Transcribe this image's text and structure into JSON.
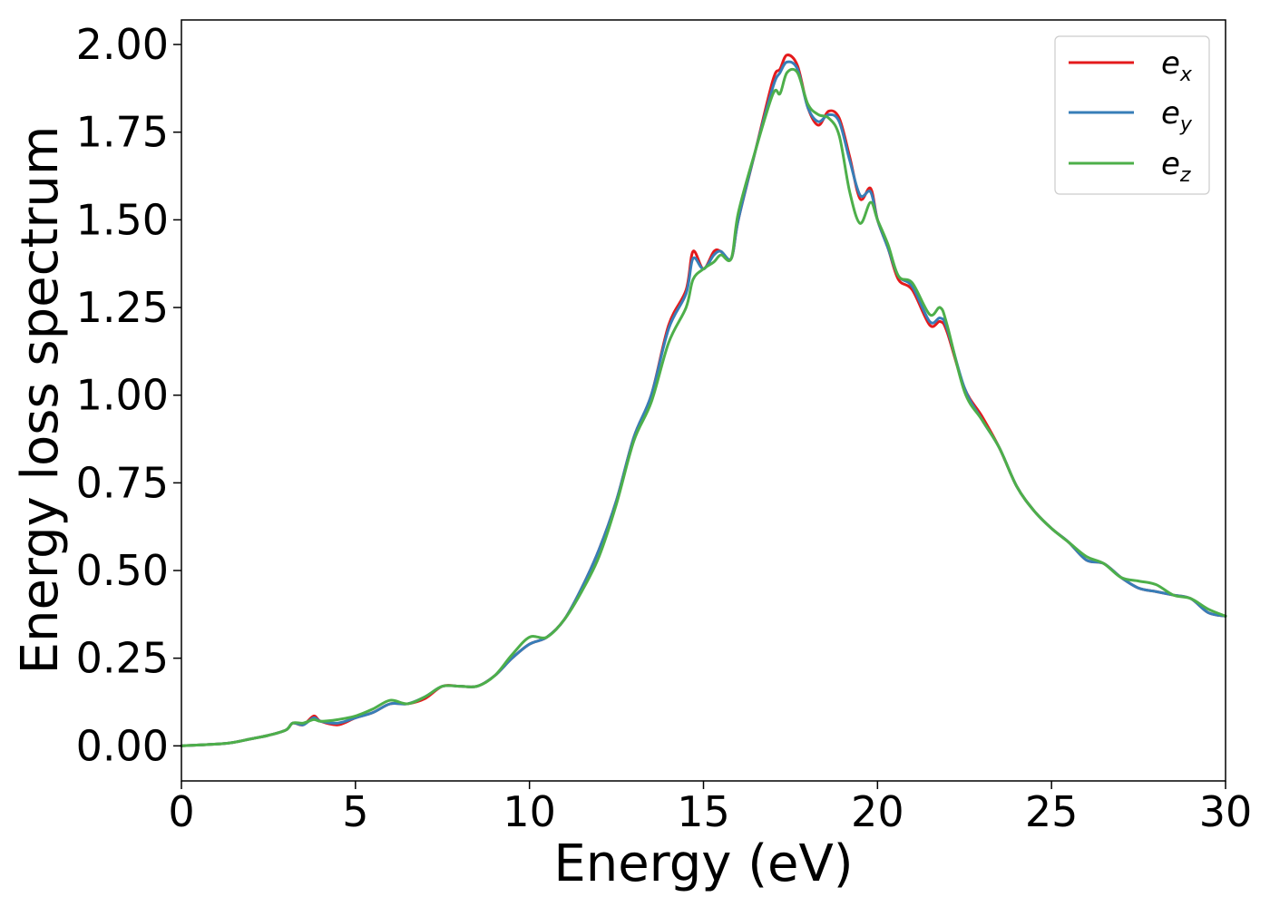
{
  "chart_data": {
    "type": "line",
    "title": "",
    "xlabel": "Energy (eV)",
    "ylabel": "Energy loss spectrum",
    "xlim": [
      0,
      30
    ],
    "ylim": [
      -0.1,
      2.07
    ],
    "xticks": [
      0,
      5,
      10,
      15,
      20,
      25,
      30
    ],
    "xtick_labels": [
      "0",
      "5",
      "10",
      "15",
      "20",
      "25",
      "30"
    ],
    "yticks": [
      0.0,
      0.25,
      0.5,
      0.75,
      1.0,
      1.25,
      1.5,
      1.75,
      2.0
    ],
    "ytick_labels": [
      "0.00",
      "0.25",
      "0.50",
      "0.75",
      "1.00",
      "1.25",
      "1.50",
      "1.75",
      "2.00"
    ],
    "grid": false,
    "legend_position": "top-right",
    "series": [
      {
        "name": "e",
        "subscript": "x",
        "color": "#e41a1c",
        "x": [
          0,
          1,
          1.5,
          2,
          2.5,
          3,
          3.2,
          3.5,
          3.8,
          4,
          4.5,
          5,
          5.5,
          6,
          6.5,
          7,
          7.5,
          8,
          8.5,
          9,
          9.5,
          10,
          10.5,
          11,
          11.5,
          12,
          12.5,
          13,
          13.5,
          14,
          14.5,
          14.7,
          15,
          15.3,
          15.5,
          15.8,
          16,
          16.5,
          17,
          17.2,
          17.4,
          17.7,
          18,
          18.3,
          18.6,
          18.9,
          19.2,
          19.5,
          19.8,
          20,
          20.3,
          20.6,
          21,
          21.5,
          21.8,
          22,
          22.5,
          23,
          23.5,
          24,
          24.5,
          25,
          25.5,
          26,
          26.5,
          27,
          27.5,
          28,
          28.5,
          29,
          29.5,
          30
        ],
        "y": [
          0.0,
          0.005,
          0.01,
          0.02,
          0.03,
          0.045,
          0.065,
          0.06,
          0.085,
          0.07,
          0.06,
          0.08,
          0.095,
          0.12,
          0.12,
          0.135,
          0.17,
          0.17,
          0.17,
          0.2,
          0.25,
          0.29,
          0.31,
          0.36,
          0.45,
          0.56,
          0.7,
          0.88,
          1.0,
          1.2,
          1.3,
          1.41,
          1.36,
          1.41,
          1.41,
          1.39,
          1.5,
          1.7,
          1.9,
          1.93,
          1.97,
          1.94,
          1.82,
          1.77,
          1.81,
          1.79,
          1.68,
          1.56,
          1.59,
          1.5,
          1.42,
          1.33,
          1.3,
          1.2,
          1.21,
          1.18,
          1.02,
          0.94,
          0.85,
          0.74,
          0.67,
          0.62,
          0.58,
          0.53,
          0.52,
          0.48,
          0.45,
          0.44,
          0.43,
          0.42,
          0.38,
          0.37
        ]
      },
      {
        "name": "e",
        "subscript": "y",
        "color": "#377eb8",
        "x": [
          0,
          1,
          1.5,
          2,
          2.5,
          3,
          3.2,
          3.5,
          3.8,
          4,
          4.5,
          5,
          5.5,
          6,
          6.5,
          7,
          7.5,
          8,
          8.5,
          9,
          9.5,
          10,
          10.5,
          11,
          11.5,
          12,
          12.5,
          13,
          13.5,
          14,
          14.5,
          14.7,
          15,
          15.3,
          15.5,
          15.8,
          16,
          16.5,
          17,
          17.2,
          17.4,
          17.7,
          18,
          18.3,
          18.6,
          18.9,
          19.2,
          19.5,
          19.8,
          20,
          20.3,
          20.6,
          21,
          21.5,
          21.8,
          22,
          22.5,
          23,
          23.5,
          24,
          24.5,
          25,
          25.5,
          26,
          26.5,
          27,
          27.5,
          28,
          28.5,
          29,
          29.5,
          30
        ],
        "y": [
          0.0,
          0.005,
          0.01,
          0.02,
          0.03,
          0.045,
          0.065,
          0.06,
          0.08,
          0.07,
          0.065,
          0.08,
          0.095,
          0.12,
          0.12,
          0.14,
          0.17,
          0.17,
          0.17,
          0.2,
          0.25,
          0.29,
          0.31,
          0.36,
          0.45,
          0.56,
          0.7,
          0.88,
          1.0,
          1.19,
          1.29,
          1.39,
          1.36,
          1.4,
          1.41,
          1.39,
          1.5,
          1.7,
          1.88,
          1.92,
          1.95,
          1.93,
          1.82,
          1.78,
          1.8,
          1.78,
          1.67,
          1.57,
          1.58,
          1.5,
          1.42,
          1.34,
          1.31,
          1.21,
          1.22,
          1.19,
          1.02,
          0.93,
          0.85,
          0.74,
          0.67,
          0.62,
          0.58,
          0.53,
          0.52,
          0.48,
          0.45,
          0.44,
          0.43,
          0.42,
          0.38,
          0.37
        ]
      },
      {
        "name": "e",
        "subscript": "z",
        "color": "#4daf4a",
        "x": [
          0,
          1,
          1.5,
          2,
          2.5,
          3,
          3.2,
          3.5,
          3.8,
          4,
          4.5,
          5,
          5.5,
          6,
          6.5,
          7,
          7.5,
          8,
          8.5,
          9,
          9.5,
          10,
          10.5,
          11,
          11.5,
          12,
          12.5,
          13,
          13.5,
          14,
          14.5,
          14.7,
          15,
          15.3,
          15.5,
          15.8,
          16,
          16.5,
          17,
          17.2,
          17.4,
          17.7,
          18,
          18.3,
          18.6,
          18.9,
          19.2,
          19.5,
          19.8,
          20,
          20.3,
          20.6,
          21,
          21.5,
          21.8,
          22,
          22.5,
          23,
          23.5,
          24,
          24.5,
          25,
          25.5,
          26,
          26.5,
          27,
          27.5,
          28,
          28.5,
          29,
          29.5,
          30
        ],
        "y": [
          0.0,
          0.005,
          0.01,
          0.02,
          0.03,
          0.045,
          0.065,
          0.065,
          0.075,
          0.07,
          0.075,
          0.085,
          0.105,
          0.13,
          0.12,
          0.14,
          0.17,
          0.17,
          0.17,
          0.2,
          0.26,
          0.31,
          0.31,
          0.36,
          0.44,
          0.54,
          0.69,
          0.87,
          0.98,
          1.15,
          1.25,
          1.33,
          1.36,
          1.38,
          1.4,
          1.39,
          1.52,
          1.7,
          1.86,
          1.86,
          1.92,
          1.92,
          1.83,
          1.8,
          1.79,
          1.74,
          1.58,
          1.49,
          1.55,
          1.5,
          1.43,
          1.34,
          1.32,
          1.23,
          1.25,
          1.2,
          1.01,
          0.93,
          0.85,
          0.74,
          0.67,
          0.62,
          0.58,
          0.54,
          0.52,
          0.48,
          0.47,
          0.46,
          0.43,
          0.42,
          0.39,
          0.37
        ]
      }
    ]
  }
}
